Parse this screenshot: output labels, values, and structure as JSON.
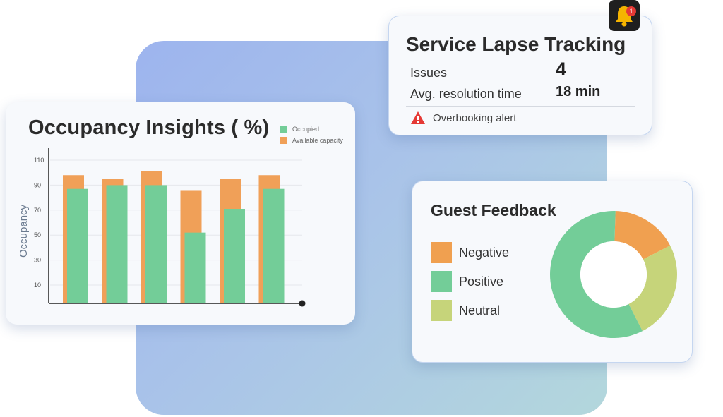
{
  "occupancy": {
    "title": "Occupancy Insights ( %)",
    "chart_data": {
      "type": "bar",
      "title": "Occupancy Insights ( %)",
      "xlabel": "",
      "ylabel": "Occupancy",
      "yticks": [
        10,
        30,
        50,
        70,
        90,
        110
      ],
      "ylim": [
        0,
        120
      ],
      "grid": true,
      "legend_position": "top-right",
      "categories": [
        "",
        "",
        "",
        "",
        "",
        ""
      ],
      "series": [
        {
          "name": "Available capacity",
          "color": "#f0a058",
          "values": [
            98,
            95,
            101,
            86,
            95,
            98
          ]
        },
        {
          "name": "Occupied",
          "color": "#73cd98",
          "values": [
            87,
            90,
            90,
            52,
            71,
            87
          ]
        }
      ]
    }
  },
  "service": {
    "title": "Service Lapse Tracking",
    "issues_label": "Issues",
    "issues_value": "4",
    "resolution_label": "Avg. resolution time",
    "resolution_value": "18 min",
    "alert_text": "Overbooking alert",
    "notification_count": "1"
  },
  "feedback": {
    "title": "Guest Feedback",
    "chart_data": {
      "type": "pie",
      "categories": [
        "Negative",
        "Positive",
        "Neutral"
      ],
      "values": [
        17,
        58,
        25
      ],
      "colors": [
        "#f0a050",
        "#73cd98",
        "#c6d47a"
      ],
      "legend_position": "left"
    }
  }
}
